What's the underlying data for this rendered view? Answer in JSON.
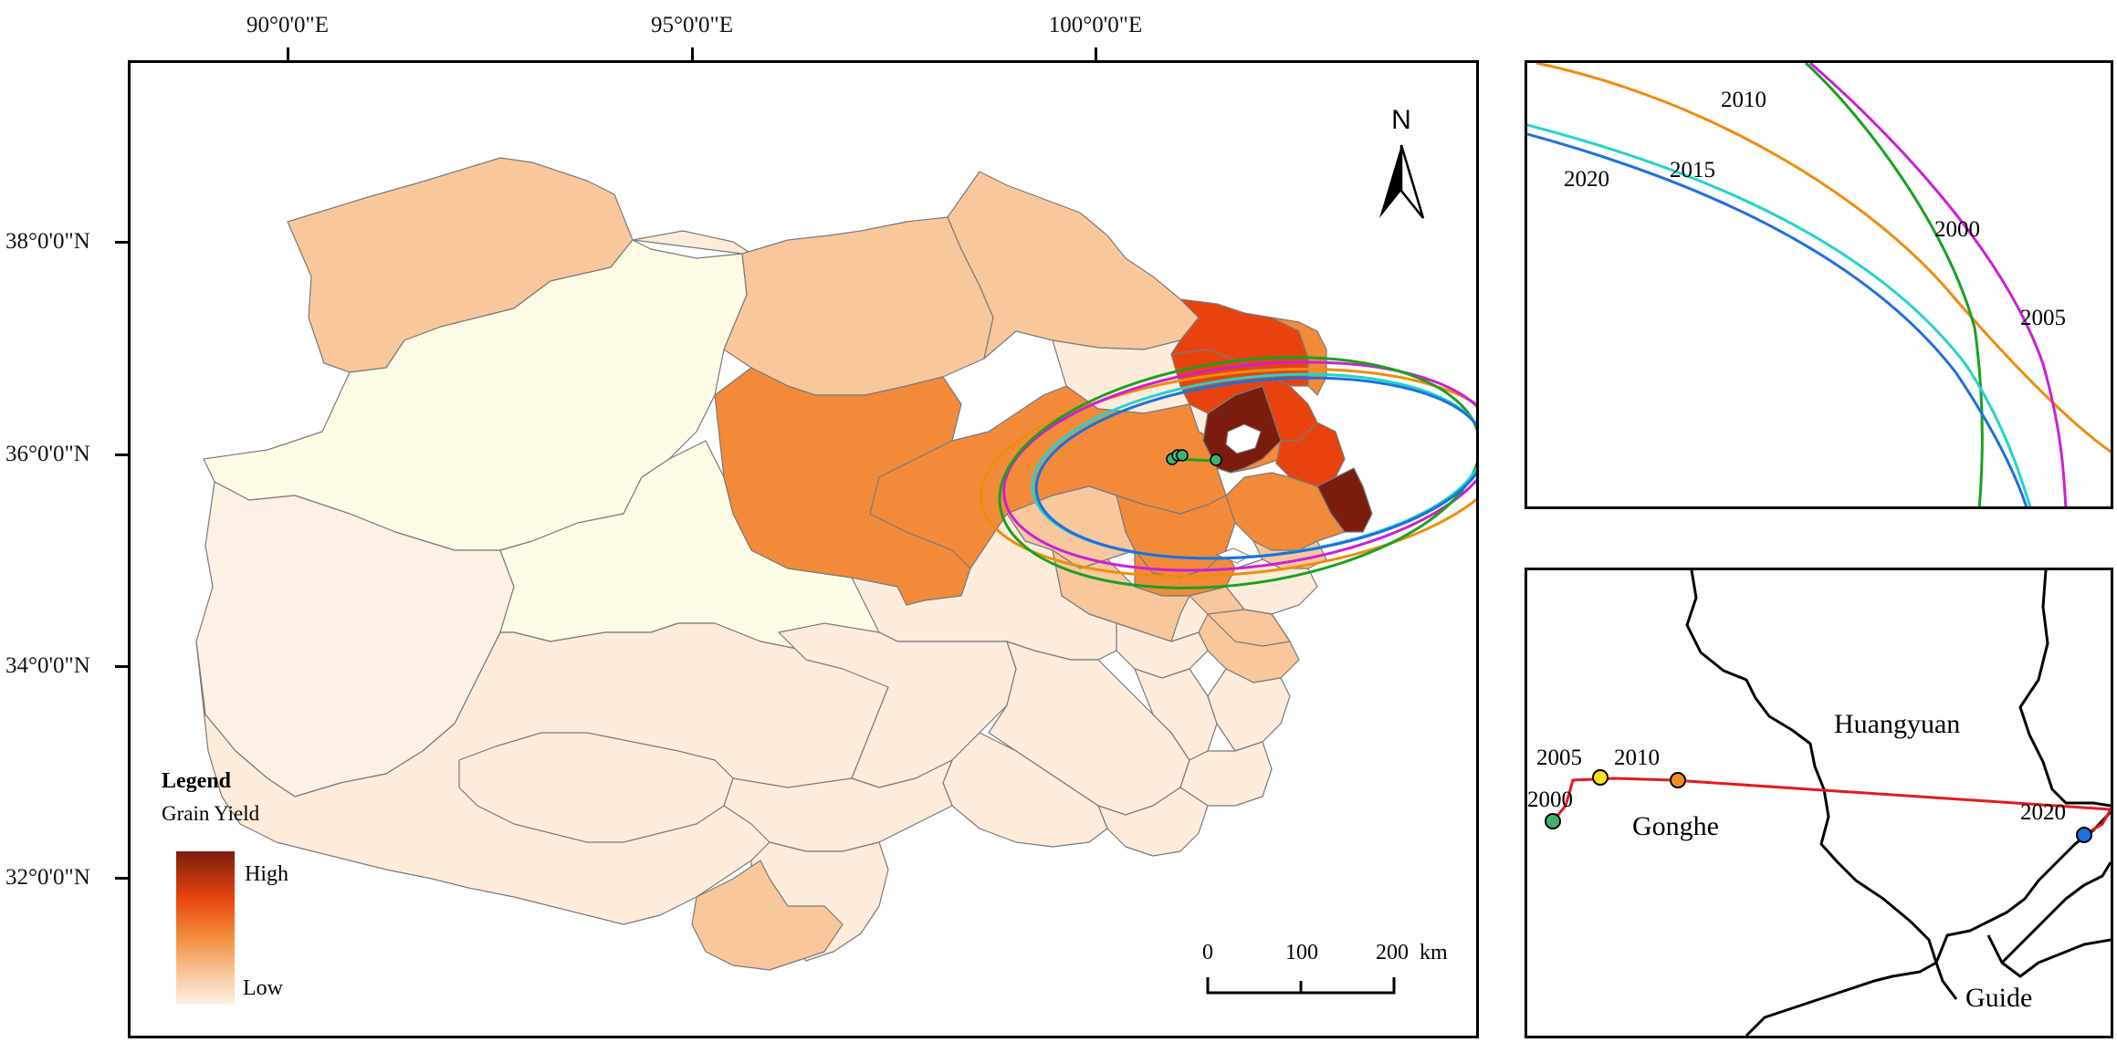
{
  "axes": {
    "longitude_labels": [
      "90°0'0\"E",
      "95°0'0\"E",
      "100°0'0\"E"
    ],
    "latitude_labels": [
      "38°0'0\"N",
      "36°0'0\"N",
      "34°0'0\"N",
      "32°0'0\"N"
    ]
  },
  "north_arrow": {
    "label": "N"
  },
  "legend": {
    "title": "Legend",
    "subtitle": "Grain Yield",
    "high_label": "High",
    "low_label": "Low",
    "colors": [
      "#7a1d0e",
      "#e8430f",
      "#f28a3a",
      "#f8c79c",
      "#fdebdc"
    ]
  },
  "scale_bar": {
    "labels": [
      "0",
      "100",
      "200"
    ],
    "unit": "km"
  },
  "year_colors": {
    "2000": "#19a11f",
    "2005": "#cc1fd6",
    "2010": "#f08c0c",
    "2015": "#22d4c8",
    "2020": "#1e6fe0"
  },
  "inset_ellipses": {
    "labels": [
      "2010",
      "2015",
      "2020",
      "2000",
      "2005"
    ]
  },
  "inset_path": {
    "county_labels": [
      "Huangyuan",
      "Gonghe",
      "Guide"
    ],
    "years": [
      "2000",
      "2005",
      "2010",
      "2020"
    ],
    "point_colors": [
      "#3cb371",
      "#ffe11a",
      "#f08c28",
      "#1e6fe0"
    ],
    "path_color": "#e31a1c"
  }
}
